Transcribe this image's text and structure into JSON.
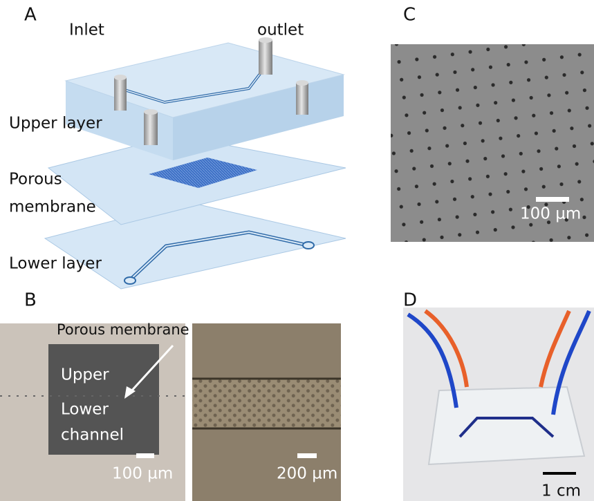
{
  "panel_a": {
    "label": "A",
    "inlet": "Inlet",
    "outlet": "outlet",
    "upper_layer": "Upper layer",
    "porous_membrane": [
      "Porous",
      "membrane"
    ],
    "lower_layer": "Lower layer"
  },
  "panel_b": {
    "label": "B",
    "porous_membrane": "Porous membrane",
    "upper": "Upper",
    "lower_channel": [
      "Lower",
      "channel"
    ],
    "scale_left": "100 µm",
    "scale_right": "200 µm"
  },
  "panel_c": {
    "label": "C",
    "scale": "100 µm"
  },
  "panel_d": {
    "label": "D",
    "scale": "1 cm"
  }
}
